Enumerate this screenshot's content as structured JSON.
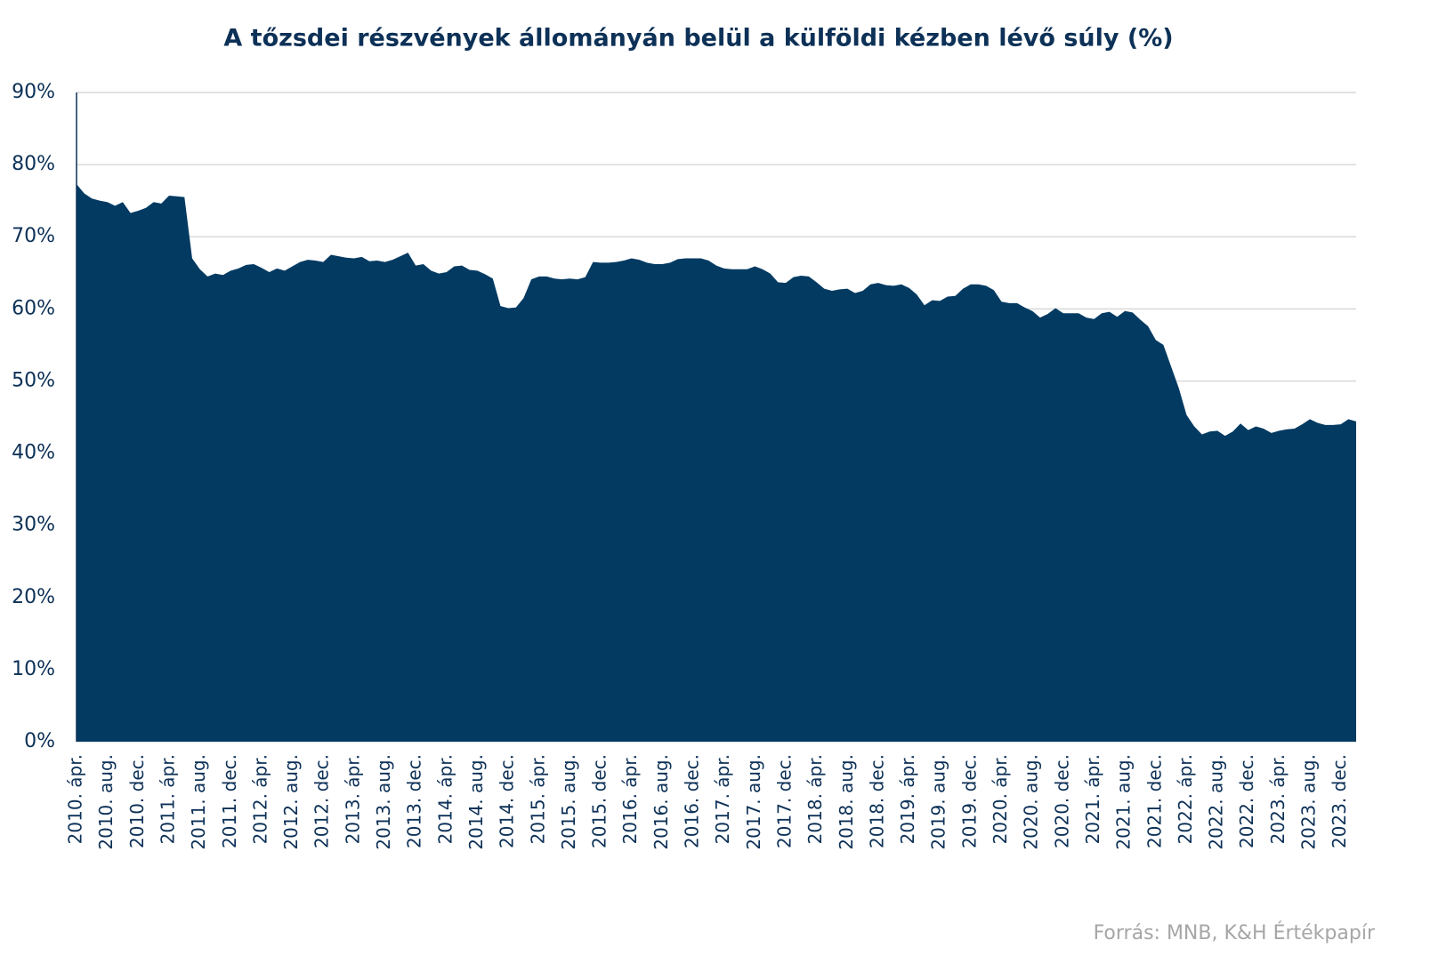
{
  "chart_data": {
    "type": "area",
    "title": "A tőzsdei részvények állományán belül a külföldi kézben lévő súly (%)",
    "source": "Forrás: MNB, K&H Értékpapír",
    "color": "#023a62",
    "grid": true,
    "ylim": [
      0,
      90
    ],
    "yticks": [
      {
        "value": 0,
        "label": "0%"
      },
      {
        "value": 10,
        "label": "10%"
      },
      {
        "value": 20,
        "label": "20%"
      },
      {
        "value": 30,
        "label": "30%"
      },
      {
        "value": 40,
        "label": "40%"
      },
      {
        "value": 50,
        "label": "50%"
      },
      {
        "value": 60,
        "label": "60%"
      },
      {
        "value": 70,
        "label": "70%"
      },
      {
        "value": 80,
        "label": "80%"
      },
      {
        "value": 90,
        "label": "90%"
      }
    ],
    "categories": [
      "2010. ápr.",
      null,
      null,
      null,
      "2010. aug.",
      null,
      null,
      null,
      "2010. dec.",
      null,
      null,
      null,
      "2011. ápr.",
      null,
      null,
      null,
      "2011. aug.",
      null,
      null,
      null,
      "2011. dec.",
      null,
      null,
      null,
      "2012. ápr.",
      null,
      null,
      null,
      "2012. aug.",
      null,
      null,
      null,
      "2012. dec.",
      null,
      null,
      null,
      "2013. ápr.",
      null,
      null,
      null,
      "2013. aug.",
      null,
      null,
      null,
      "2013. dec.",
      null,
      null,
      null,
      "2014. ápr.",
      null,
      null,
      null,
      "2014. aug.",
      null,
      null,
      null,
      "2014. dec.",
      null,
      null,
      null,
      "2015. ápr.",
      null,
      null,
      null,
      "2015. aug.",
      null,
      null,
      null,
      "2015. dec.",
      null,
      null,
      null,
      "2016. ápr.",
      null,
      null,
      null,
      "2016. aug.",
      null,
      null,
      null,
      "2016. dec.",
      null,
      null,
      null,
      "2017. ápr.",
      null,
      null,
      null,
      "2017. aug.",
      null,
      null,
      null,
      "2017. dec.",
      null,
      null,
      null,
      "2018. ápr.",
      null,
      null,
      null,
      "2018. aug.",
      null,
      null,
      null,
      "2018. dec.",
      null,
      null,
      null,
      "2019. ápr.",
      null,
      null,
      null,
      "2019. aug.",
      null,
      null,
      null,
      "2019. dec.",
      null,
      null,
      null,
      "2020. ápr.",
      null,
      null,
      null,
      "2020. aug.",
      null,
      null,
      null,
      "2020. dec.",
      null,
      null,
      null,
      "2021. ápr.",
      null,
      null,
      null,
      "2021. aug.",
      null,
      null,
      null,
      "2021. dec.",
      null,
      null,
      null,
      "2022. ápr.",
      null,
      null,
      null,
      "2022. aug.",
      null,
      null,
      null,
      "2022. dec.",
      null,
      null,
      null,
      "2023. ápr.",
      null,
      null,
      null,
      "2023. aug.",
      null,
      null,
      null,
      "2023. dec.",
      null,
      null
    ],
    "values": [
      77.3,
      76.0,
      75.3,
      75.0,
      74.8,
      74.3,
      74.8,
      73.3,
      73.6,
      74.0,
      74.8,
      74.6,
      75.7,
      75.6,
      75.5,
      67.0,
      65.5,
      64.5,
      64.9,
      64.7,
      65.3,
      65.6,
      66.1,
      66.2,
      65.7,
      65.1,
      65.6,
      65.3,
      65.9,
      66.5,
      66.8,
      66.7,
      66.5,
      67.5,
      67.3,
      67.1,
      67.0,
      67.2,
      66.6,
      66.7,
      66.5,
      66.8,
      67.3,
      67.8,
      66.0,
      66.2,
      65.3,
      64.9,
      65.1,
      65.9,
      66.0,
      65.4,
      65.3,
      64.8,
      64.2,
      60.4,
      60.1,
      60.2,
      61.5,
      64.1,
      64.5,
      64.5,
      64.2,
      64.1,
      64.2,
      64.1,
      64.4,
      66.5,
      66.4,
      66.4,
      66.5,
      66.7,
      67.0,
      66.8,
      66.4,
      66.2,
      66.2,
      66.4,
      66.9,
      67.0,
      67.0,
      67.0,
      66.7,
      66.0,
      65.6,
      65.5,
      65.5,
      65.5,
      65.9,
      65.5,
      64.9,
      63.7,
      63.6,
      64.4,
      64.6,
      64.5,
      63.7,
      62.8,
      62.5,
      62.7,
      62.8,
      62.2,
      62.5,
      63.4,
      63.6,
      63.3,
      63.2,
      63.4,
      62.9,
      62.0,
      60.5,
      61.2,
      61.1,
      61.7,
      61.8,
      62.8,
      63.4,
      63.4,
      63.2,
      62.6,
      61.0,
      60.8,
      60.8,
      60.2,
      59.7,
      58.8,
      59.3,
      60.1,
      59.4,
      59.4,
      59.4,
      58.8,
      58.6,
      59.4,
      59.6,
      58.9,
      59.7,
      59.5,
      58.5,
      57.6,
      55.7,
      55.0,
      52.0,
      49.0,
      45.3,
      43.7,
      42.6,
      43.0,
      43.1,
      42.4,
      43.0,
      44.1,
      43.2,
      43.7,
      43.4,
      42.8,
      43.1,
      43.3,
      43.4,
      44.0,
      44.7,
      44.2,
      43.9,
      43.9,
      44.0,
      44.7,
      44.4
    ]
  }
}
